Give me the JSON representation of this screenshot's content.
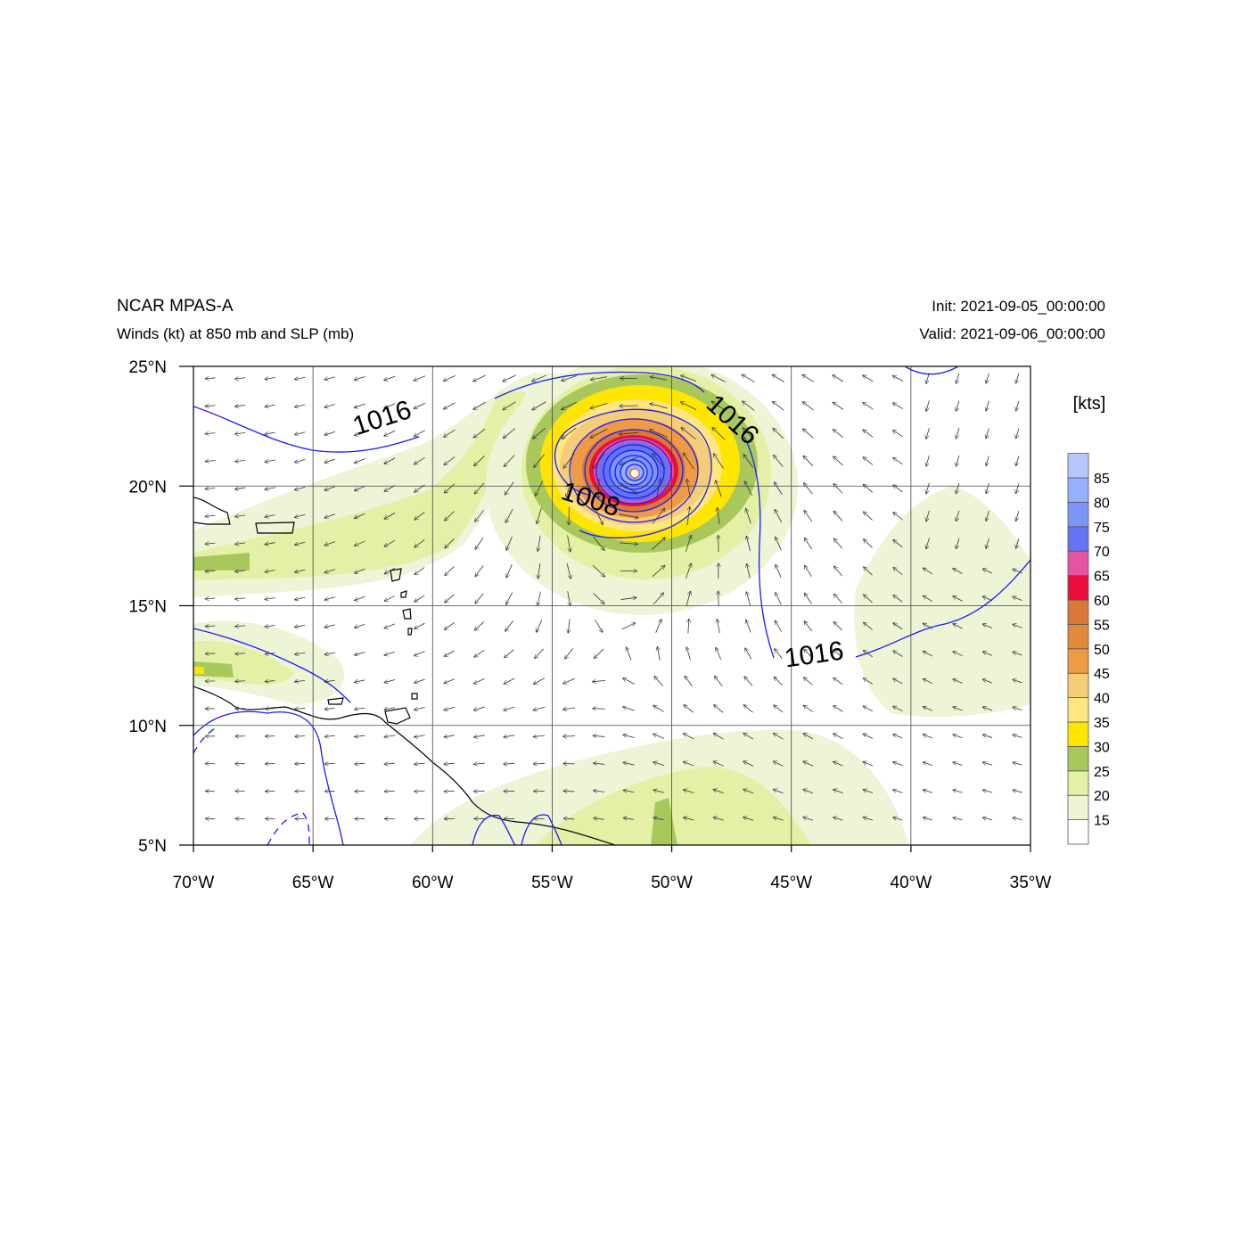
{
  "header": {
    "title": "NCAR MPAS-A",
    "subtitle": "Winds (kt) at 850 mb and SLP (mb)",
    "init": "Init: 2021-09-05_00:00:00",
    "valid": "Valid: 2021-09-06_00:00:00"
  },
  "map": {
    "lon_range": [
      -70,
      -35
    ],
    "lat_range": [
      5,
      25
    ],
    "lon_ticks": [
      {
        "value": -70,
        "label": "70°W"
      },
      {
        "value": -65,
        "label": "65°W"
      },
      {
        "value": -60,
        "label": "60°W"
      },
      {
        "value": -55,
        "label": "55°W"
      },
      {
        "value": -50,
        "label": "50°W"
      },
      {
        "value": -45,
        "label": "45°W"
      },
      {
        "value": -40,
        "label": "40°W"
      },
      {
        "value": -35,
        "label": "35°W"
      }
    ],
    "lat_ticks": [
      {
        "value": 25,
        "label": "25°N"
      },
      {
        "value": 20,
        "label": "20°N"
      },
      {
        "value": 15,
        "label": "15°N"
      },
      {
        "value": 10,
        "label": "10°N"
      },
      {
        "value": 5,
        "label": "5°N"
      }
    ],
    "grid": true,
    "storm_center": {
      "lon": -51.5,
      "lat": 20.6
    },
    "contour_labels": [
      {
        "text": "1016",
        "lon": -62.0,
        "lat": 22.5,
        "angle": -18
      },
      {
        "text": "1016",
        "lon": -47.7,
        "lat": 22.5,
        "angle": 42
      },
      {
        "text": "1008",
        "lon": -53.5,
        "lat": 19.1,
        "angle": 18
      },
      {
        "text": "1016",
        "lon": -44.0,
        "lat": 12.6,
        "angle": -8
      }
    ]
  },
  "colorbar": {
    "unit_label": "[kts]",
    "levels": [
      "15",
      "20",
      "25",
      "30",
      "35",
      "40",
      "45",
      "50",
      "55",
      "60",
      "65",
      "70",
      "75",
      "80",
      "85"
    ],
    "colors": [
      "#ffffff",
      "#eef4d6",
      "#e3f0a6",
      "#a8c85c",
      "#ffe600",
      "#ffe680",
      "#f5cd78",
      "#ee9b48",
      "#e38a38",
      "#d97838",
      "#ea0f3b",
      "#e454a0",
      "#6673f2",
      "#7d94f8",
      "#96b0fb",
      "#b5c7fa"
    ]
  }
}
